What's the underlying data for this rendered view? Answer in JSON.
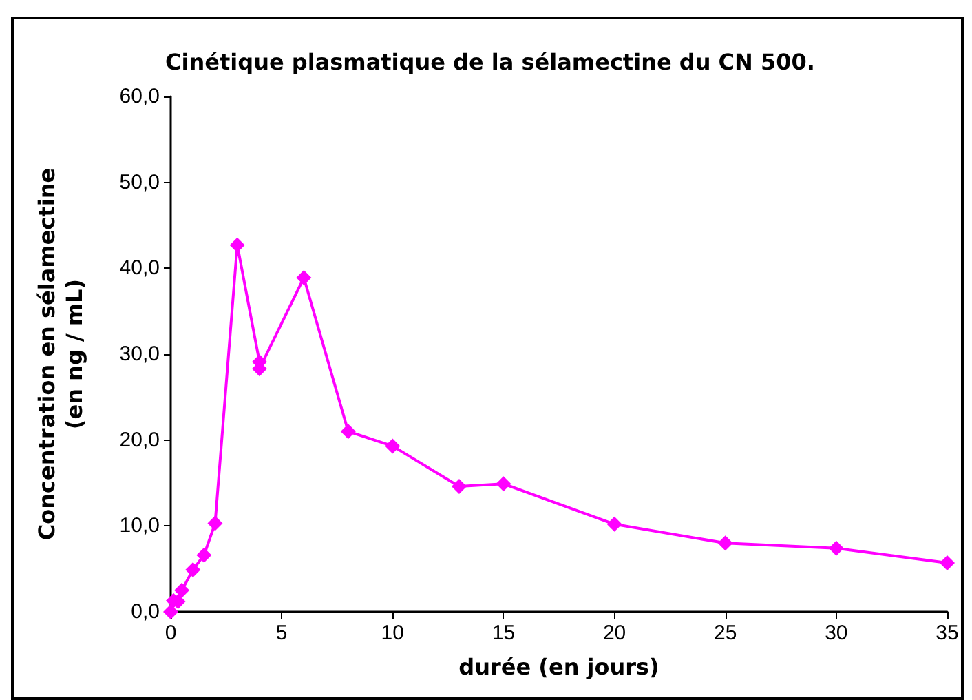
{
  "chart_data": {
    "type": "line",
    "title": "Cinétique plasmatique de la sélamectine du CN 500.",
    "xlabel": "durée (en jours)",
    "ylabel": "Concentration en sélamectine\n(en ng / mL)",
    "x": [
      0,
      0.125,
      0.33,
      0.5,
      1,
      1.5,
      2,
      3,
      4,
      4,
      6,
      8,
      10,
      13,
      15,
      20,
      25,
      30,
      35
    ],
    "series": [
      {
        "color": "#ff00ff",
        "values": [
          0,
          1.3,
          1.2,
          2.5,
          4.9,
          6.6,
          10.3,
          42.7,
          29.1,
          28.3,
          38.9,
          21,
          19.3,
          14.6,
          14.9,
          10.2,
          8,
          7.4,
          5.7
        ]
      }
    ],
    "xlim": [
      0,
      35
    ],
    "xticks": [
      0,
      5,
      10,
      15,
      20,
      25,
      30,
      35
    ],
    "ylim": [
      0,
      60
    ],
    "yticks": [
      {
        "value": 0,
        "label": "0,0"
      },
      {
        "value": 10,
        "label": "10,0"
      },
      {
        "value": 20,
        "label": "20,0"
      },
      {
        "value": 30,
        "label": "30,0"
      },
      {
        "value": 40,
        "label": "40,0"
      },
      {
        "value": 50,
        "label": "50,0"
      },
      {
        "value": 60,
        "label": "60,0"
      }
    ],
    "grid": false,
    "marker": "diamond",
    "line_style": "solid"
  }
}
